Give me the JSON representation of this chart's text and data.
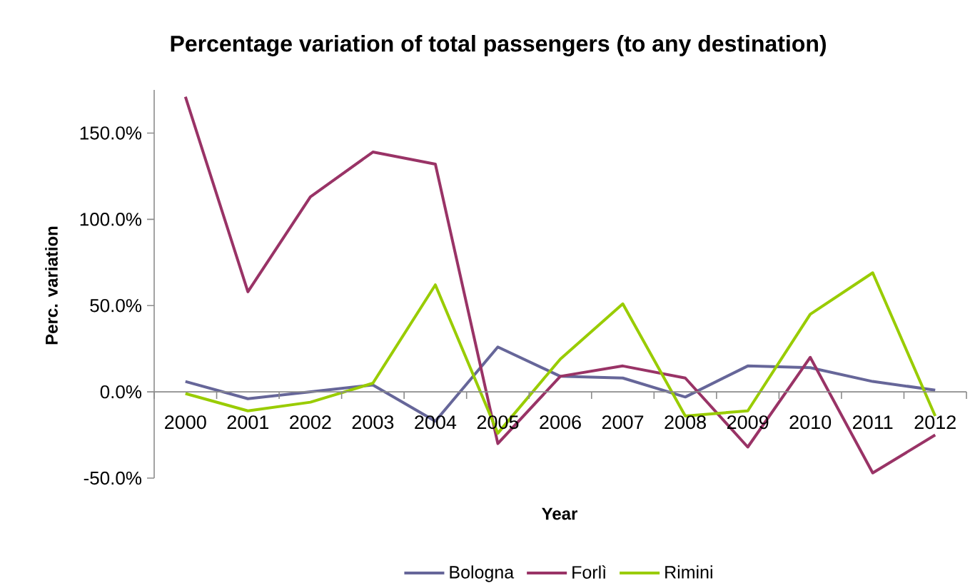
{
  "chart_data": {
    "type": "line",
    "title": "Percentage variation of total passengers (to any destination)",
    "xlabel": "Year",
    "ylabel": "Perc. variation",
    "categories": [
      "2000",
      "2001",
      "2002",
      "2003",
      "2004",
      "2005",
      "2006",
      "2007",
      "2008",
      "2009",
      "2010",
      "2011",
      "2012"
    ],
    "series": [
      {
        "name": "Bologna",
        "color": "#666699",
        "values": [
          6,
          -4,
          0,
          4,
          -17,
          26,
          9,
          8,
          -3,
          15,
          14,
          6,
          1
        ]
      },
      {
        "name": "Forlì",
        "color": "#993366",
        "values": [
          171,
          58,
          113,
          139,
          132,
          -30,
          9,
          15,
          8,
          -32,
          20,
          -47,
          -25
        ]
      },
      {
        "name": "Rimini",
        "color": "#99cc00",
        "values": [
          -1,
          -11,
          -6,
          5,
          62,
          -24,
          19,
          51,
          -14,
          -11,
          45,
          69,
          -14
        ]
      }
    ],
    "ylim": [
      -50,
      175
    ],
    "yticks": [
      {
        "value": -50,
        "label": "-50.0%"
      },
      {
        "value": 0,
        "label": "0.0%"
      },
      {
        "value": 50,
        "label": "50.0%"
      },
      {
        "value": 100,
        "label": "100.0%"
      },
      {
        "value": 150,
        "label": "150.0%"
      }
    ],
    "legend": "bottom",
    "marker": "none",
    "line_style": "solid"
  }
}
